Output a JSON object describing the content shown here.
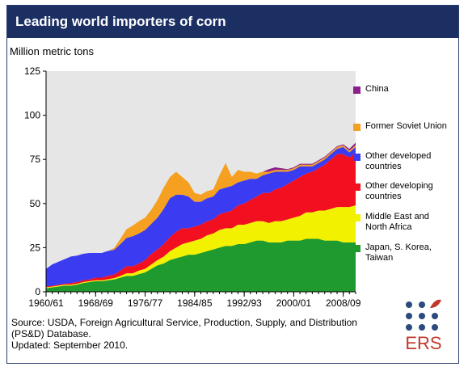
{
  "header": {
    "title": "Leading world importers of corn"
  },
  "source": {
    "text": "Source: USDA, Foreign Agricultural Service, Production, Supply, and Distribution (PS&D) Database.",
    "updated": "Updated: September 2010."
  },
  "logo": {
    "text": "ERS",
    "dot_color": "#2b4a7e",
    "accent_color": "#c0392b"
  },
  "chart_data": {
    "type": "area",
    "stacked": true,
    "title": "Leading world importers of corn",
    "ylabel": "Million metric tons",
    "xlabel": "",
    "ylim": [
      0,
      125
    ],
    "yticks": [
      0,
      25,
      50,
      75,
      100,
      125
    ],
    "xtick_labels": [
      "1960/61",
      "1968/69",
      "1976/77",
      "1984/85",
      "1992/93",
      "2000/01",
      "2008/09"
    ],
    "xtick_years": [
      1960,
      1968,
      1976,
      1984,
      1992,
      2000,
      2008
    ],
    "x": [
      1960,
      1961,
      1962,
      1963,
      1964,
      1965,
      1966,
      1967,
      1968,
      1969,
      1970,
      1971,
      1972,
      1973,
      1974,
      1975,
      1976,
      1977,
      1978,
      1979,
      1980,
      1981,
      1982,
      1983,
      1984,
      1985,
      1986,
      1987,
      1988,
      1989,
      1990,
      1991,
      1992,
      1993,
      1994,
      1995,
      1996,
      1997,
      1998,
      1999,
      2000,
      2001,
      2002,
      2003,
      2004,
      2005,
      2006,
      2007,
      2008,
      2009,
      2010
    ],
    "grid": false,
    "plot_background": "#e6e6e6",
    "legend_position": "right",
    "series": [
      {
        "name": "Japan, S. Korea, Taiwan",
        "color": "#1f9a2e",
        "values": [
          2,
          2.5,
          3,
          3.5,
          3.5,
          4,
          5,
          5.5,
          6,
          6,
          6.5,
          7,
          8,
          9,
          9,
          10,
          11,
          13,
          15,
          16,
          18,
          19,
          20,
          21,
          21,
          22,
          23,
          24,
          25,
          26,
          26,
          27,
          27,
          28,
          29,
          29,
          28,
          28,
          28,
          29,
          29,
          29,
          30,
          30,
          30,
          29,
          29,
          29,
          28,
          28,
          28
        ]
      },
      {
        "name": "Middle East and North Africa",
        "color": "#f2f200",
        "values": [
          0.5,
          0.5,
          0.5,
          0.5,
          0.5,
          0.5,
          0.5,
          0.5,
          0.5,
          0.5,
          0.6,
          0.8,
          1,
          1.5,
          1.5,
          2,
          2,
          2.5,
          3,
          4,
          5,
          6,
          7,
          7,
          8,
          8,
          9,
          9,
          10,
          10,
          10,
          11,
          11,
          11,
          11,
          11,
          11,
          12,
          12,
          12,
          13,
          14,
          15,
          15,
          16,
          17,
          18,
          19,
          20,
          20,
          21
        ]
      },
      {
        "name": "Other developing countries",
        "color": "#f20f1f",
        "values": [
          0.5,
          0.5,
          0.5,
          0.5,
          1,
          1,
          1,
          1,
          1.5,
          1.5,
          2,
          2,
          3,
          4,
          4,
          4,
          5,
          6,
          6,
          7,
          8,
          9,
          9,
          8,
          8,
          8,
          8,
          8,
          9,
          9,
          10,
          11,
          12,
          13,
          14,
          16,
          17,
          18,
          19,
          20,
          21,
          22,
          22,
          23,
          24,
          26,
          28,
          30,
          30,
          28,
          30
        ]
      },
      {
        "name": "Other developed countries",
        "color": "#3b3bf2",
        "values": [
          10,
          12,
          13,
          14,
          15,
          15,
          15,
          15,
          14,
          14,
          14,
          14,
          15,
          16,
          17,
          17,
          17,
          17,
          18,
          20,
          22,
          21,
          19,
          18,
          14,
          13,
          13,
          13,
          14,
          14,
          14,
          13,
          13,
          12,
          10,
          10,
          11,
          10,
          9,
          7,
          6,
          6,
          4,
          3,
          3,
          3,
          3,
          3,
          4,
          3,
          3
        ]
      },
      {
        "name": "Former Soviet Union",
        "color": "#f5a020",
        "values": [
          0,
          0,
          0,
          0,
          0,
          0,
          0,
          0,
          0,
          0,
          0,
          1,
          3,
          5,
          6,
          7,
          7,
          8,
          10,
          12,
          12,
          13,
          10,
          8,
          5,
          4,
          4,
          4,
          8,
          14,
          5,
          7,
          5,
          4,
          3,
          2,
          1,
          1,
          1,
          1,
          1,
          1,
          1,
          1,
          1,
          1,
          1,
          1,
          1,
          1,
          1
        ]
      },
      {
        "name": "China",
        "color": "#8c1f8c",
        "values": [
          0,
          0,
          0,
          0,
          0,
          0,
          0,
          0,
          0,
          0,
          0,
          0,
          0,
          0,
          0,
          0,
          0,
          0,
          0,
          0,
          0,
          0,
          0,
          0,
          0,
          0,
          0,
          0,
          0,
          0,
          0,
          0,
          0,
          0,
          0,
          0,
          1.5,
          1.5,
          1,
          0.5,
          0.5,
          0.5,
          0.5,
          0.5,
          0.5,
          0.5,
          0.5,
          0.5,
          0.5,
          1,
          1.5
        ]
      }
    ]
  }
}
